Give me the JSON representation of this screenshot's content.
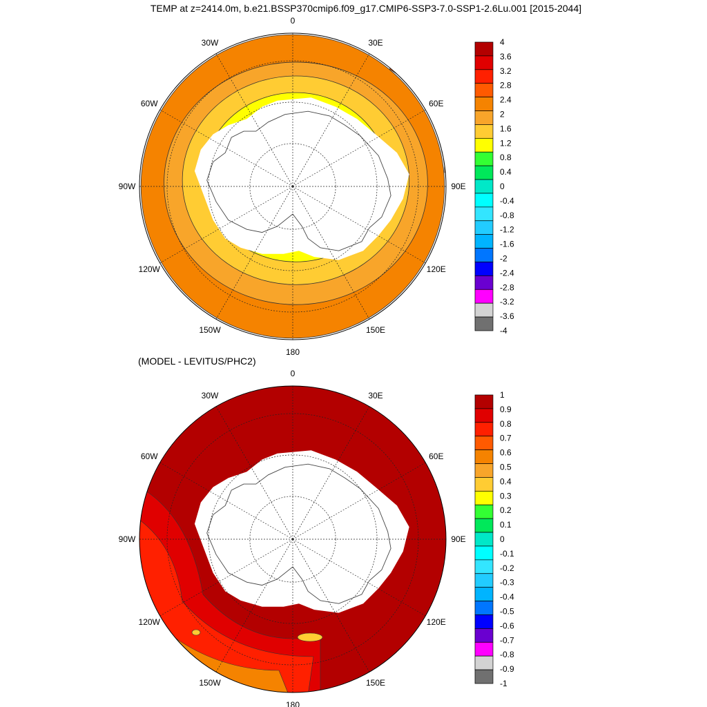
{
  "title": "TEMP at z=2414.0m, b.e21.BSSP370cmip6.f09_g17.CMIP6-SSP3-7.0-SSP1-2.6Lu.001 [2015-2044]",
  "lon_labels": [
    "0",
    "30E",
    "60E",
    "90E",
    "120E",
    "150E",
    "180",
    "150W",
    "120W",
    "90W",
    "60W",
    "30W"
  ],
  "panels": [
    {
      "subtitle": "",
      "colorbar": {
        "labels": [
          "4",
          "3.6",
          "3.2",
          "2.8",
          "2.4",
          "2",
          "1.6",
          "1.2",
          "0.8",
          "0.4",
          "0",
          "-0.4",
          "-0.8",
          "-1.2",
          "-1.6",
          "-2",
          "-2.4",
          "-2.8",
          "-3.2",
          "-3.6",
          "-4"
        ],
        "colors": [
          "#b30000",
          "#e00000",
          "#ff2000",
          "#ff5a00",
          "#f58300",
          "#f8a52a",
          "#ffcc33",
          "#ffff00",
          "#33ff33",
          "#00e85a",
          "#00e8c8",
          "#00ffff",
          "#33e5ff",
          "#22ccff",
          "#00b4ff",
          "#0076ff",
          "#0000ff",
          "#6a00d0",
          "#ff00ff",
          "#d3d3d3",
          "#707070"
        ]
      },
      "field": {
        "rings": [
          {
            "r": 0.99,
            "color": "#f58300"
          },
          {
            "r": 0.86,
            "color": "#f8a52a"
          },
          {
            "r": 0.74,
            "color": "#ffcc33"
          },
          {
            "r": 0.6,
            "color": "#ffff00"
          }
        ]
      }
    },
    {
      "subtitle": "(MODEL - LEVITUS/PHC2)",
      "colorbar": {
        "labels": [
          "1",
          "0.9",
          "0.8",
          "0.7",
          "0.6",
          "0.5",
          "0.4",
          "0.3",
          "0.2",
          "0.1",
          "0",
          "-0.1",
          "-0.2",
          "-0.3",
          "-0.4",
          "-0.5",
          "-0.6",
          "-0.7",
          "-0.8",
          "-0.9",
          "-1"
        ],
        "colors": [
          "#b30000",
          "#e00000",
          "#ff2000",
          "#ff5a00",
          "#f58300",
          "#f8a52a",
          "#ffcc33",
          "#ffff00",
          "#33ff33",
          "#00e85a",
          "#00e8c8",
          "#00ffff",
          "#33e5ff",
          "#22ccff",
          "#00b4ff",
          "#0076ff",
          "#0000ff",
          "#6a00d0",
          "#ff00ff",
          "#d3d3d3",
          "#707070"
        ]
      },
      "field": {
        "base": "#b30000",
        "patches": [
          {
            "color": "#e00000"
          },
          {
            "color": "#ff2000"
          },
          {
            "color": "#f58300"
          },
          {
            "color": "#ffcc33"
          }
        ]
      }
    }
  ]
}
